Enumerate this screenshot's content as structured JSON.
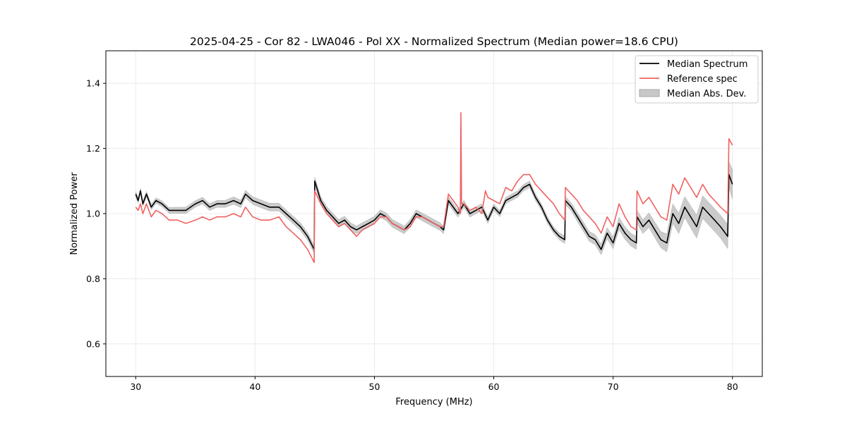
{
  "chart_data": {
    "type": "line",
    "title": "2025-04-25 - Cor 82 - LWA046 - Pol XX - Normalized Spectrum (Median power=18.6 CPU)",
    "xlabel": "Frequency (MHz)",
    "ylabel": "Normalized Power",
    "xlim": [
      27.5,
      82.5
    ],
    "ylim": [
      0.5,
      1.5
    ],
    "xticks": [
      30,
      40,
      50,
      60,
      70,
      80
    ],
    "yticks": [
      0.6,
      0.8,
      1.0,
      1.2,
      1.4
    ],
    "xtick_labels": [
      "30",
      "40",
      "50",
      "60",
      "70",
      "80"
    ],
    "ytick_labels": [
      "0.6",
      "0.8",
      "1.0",
      "1.2",
      "1.4"
    ],
    "grid": true,
    "legend_position": "top-right",
    "series": [
      {
        "name": "Median Spectrum",
        "color": "#000000",
        "x": [
          30.0,
          30.2,
          30.4,
          30.6,
          30.9,
          31.3,
          31.7,
          32.2,
          32.8,
          33.5,
          34.2,
          35.0,
          35.6,
          36.2,
          36.8,
          37.5,
          38.2,
          38.8,
          39.2,
          39.8,
          40.5,
          41.2,
          42.0,
          42.6,
          43.2,
          43.8,
          44.4,
          44.95,
          45.0,
          45.5,
          46.0,
          46.5,
          47.0,
          47.5,
          48.0,
          48.5,
          49.0,
          49.5,
          50.0,
          50.5,
          51.0,
          51.5,
          52.0,
          52.5,
          53.0,
          53.5,
          54.0,
          54.5,
          55.0,
          55.5,
          55.8,
          56.2,
          56.6,
          57.0,
          57.5,
          58.0,
          58.5,
          59.0,
          59.5,
          60.0,
          60.5,
          61.0,
          61.5,
          62.0,
          62.5,
          63.0,
          63.5,
          64.0,
          64.5,
          65.0,
          65.5,
          65.95,
          66.0,
          66.5,
          67.0,
          67.5,
          68.0,
          68.5,
          69.0,
          69.5,
          70.0,
          70.5,
          71.0,
          71.5,
          71.95,
          72.0,
          72.5,
          73.0,
          73.5,
          74.0,
          74.5,
          75.0,
          75.5,
          76.0,
          76.5,
          77.0,
          77.5,
          78.0,
          78.5,
          79.0,
          79.6,
          79.7,
          80.0
        ],
        "values": [
          1.06,
          1.04,
          1.07,
          1.03,
          1.06,
          1.02,
          1.04,
          1.03,
          1.01,
          1.01,
          1.01,
          1.03,
          1.04,
          1.02,
          1.03,
          1.03,
          1.04,
          1.03,
          1.06,
          1.04,
          1.03,
          1.02,
          1.02,
          1.0,
          0.98,
          0.96,
          0.93,
          0.89,
          1.1,
          1.04,
          1.01,
          0.99,
          0.97,
          0.98,
          0.96,
          0.95,
          0.96,
          0.97,
          0.98,
          1.0,
          0.99,
          0.97,
          0.96,
          0.95,
          0.97,
          1.0,
          0.99,
          0.98,
          0.97,
          0.96,
          0.95,
          1.04,
          1.02,
          1.0,
          1.03,
          1.0,
          1.01,
          1.02,
          0.98,
          1.02,
          1.0,
          1.04,
          1.05,
          1.06,
          1.08,
          1.09,
          1.05,
          1.02,
          0.98,
          0.95,
          0.93,
          0.92,
          1.04,
          1.02,
          0.99,
          0.96,
          0.93,
          0.92,
          0.89,
          0.94,
          0.91,
          0.97,
          0.94,
          0.92,
          0.91,
          0.99,
          0.96,
          0.98,
          0.95,
          0.92,
          0.91,
          1.0,
          0.97,
          1.02,
          0.99,
          0.96,
          1.02,
          1.0,
          0.98,
          0.96,
          0.93,
          1.12,
          1.09
        ]
      },
      {
        "name": "Reference spec",
        "color": "#f06262",
        "x": [
          30.0,
          30.2,
          30.4,
          30.6,
          30.9,
          31.3,
          31.7,
          32.2,
          32.8,
          33.5,
          34.2,
          35.0,
          35.6,
          36.2,
          36.8,
          37.5,
          38.2,
          38.8,
          39.2,
          39.8,
          40.5,
          41.2,
          42.0,
          42.6,
          43.2,
          43.8,
          44.4,
          44.95,
          45.0,
          45.5,
          46.0,
          46.5,
          47.0,
          47.5,
          48.0,
          48.5,
          49.0,
          49.5,
          50.0,
          50.5,
          51.0,
          51.5,
          52.0,
          52.5,
          53.0,
          53.5,
          54.0,
          54.5,
          55.0,
          55.5,
          55.8,
          56.2,
          56.6,
          57.0,
          57.2,
          57.25,
          57.3,
          57.5,
          58.0,
          58.5,
          59.0,
          59.3,
          59.5,
          60.0,
          60.5,
          61.0,
          61.5,
          62.0,
          62.5,
          63.0,
          63.5,
          64.0,
          64.5,
          65.0,
          65.5,
          65.95,
          66.0,
          66.5,
          67.0,
          67.5,
          68.0,
          68.5,
          69.0,
          69.5,
          70.0,
          70.5,
          71.0,
          71.5,
          71.95,
          72.0,
          72.5,
          73.0,
          73.5,
          74.0,
          74.5,
          75.0,
          75.5,
          76.0,
          76.5,
          77.0,
          77.5,
          78.0,
          78.5,
          79.0,
          79.6,
          79.7,
          80.0
        ],
        "values": [
          1.02,
          1.01,
          1.03,
          1.0,
          1.03,
          0.99,
          1.01,
          1.0,
          0.98,
          0.98,
          0.97,
          0.98,
          0.99,
          0.98,
          0.99,
          0.99,
          1.0,
          0.99,
          1.02,
          0.99,
          0.98,
          0.98,
          0.99,
          0.96,
          0.94,
          0.92,
          0.89,
          0.85,
          1.07,
          1.03,
          1.0,
          0.98,
          0.96,
          0.97,
          0.95,
          0.93,
          0.95,
          0.96,
          0.97,
          0.99,
          0.99,
          0.97,
          0.96,
          0.95,
          0.96,
          0.99,
          0.99,
          0.98,
          0.97,
          0.96,
          0.96,
          1.06,
          1.04,
          1.02,
          1.0,
          1.31,
          1.03,
          1.03,
          1.01,
          1.02,
          1.0,
          1.07,
          1.05,
          1.04,
          1.03,
          1.08,
          1.07,
          1.1,
          1.12,
          1.12,
          1.09,
          1.07,
          1.05,
          1.03,
          1.0,
          0.98,
          1.08,
          1.06,
          1.04,
          1.01,
          0.99,
          0.97,
          0.94,
          0.99,
          0.96,
          1.03,
          0.99,
          0.96,
          0.95,
          1.07,
          1.03,
          1.05,
          1.02,
          0.99,
          0.98,
          1.09,
          1.06,
          1.11,
          1.08,
          1.05,
          1.09,
          1.06,
          1.04,
          1.02,
          1.0,
          1.23,
          1.21
        ]
      },
      {
        "name": "Median Abs. Dev.",
        "type": "band",
        "color": "#c8c8c8",
        "x": [
          30.0,
          35.0,
          40.0,
          45.0,
          50.0,
          55.0,
          60.0,
          65.0,
          66.0,
          70.0,
          72.0,
          74.0,
          75.0,
          77.0,
          79.5,
          79.7,
          80.0
        ],
        "half_width": [
          0.008,
          0.01,
          0.012,
          0.012,
          0.012,
          0.012,
          0.01,
          0.01,
          0.012,
          0.018,
          0.02,
          0.025,
          0.03,
          0.035,
          0.035,
          0.04,
          0.045
        ]
      }
    ]
  }
}
